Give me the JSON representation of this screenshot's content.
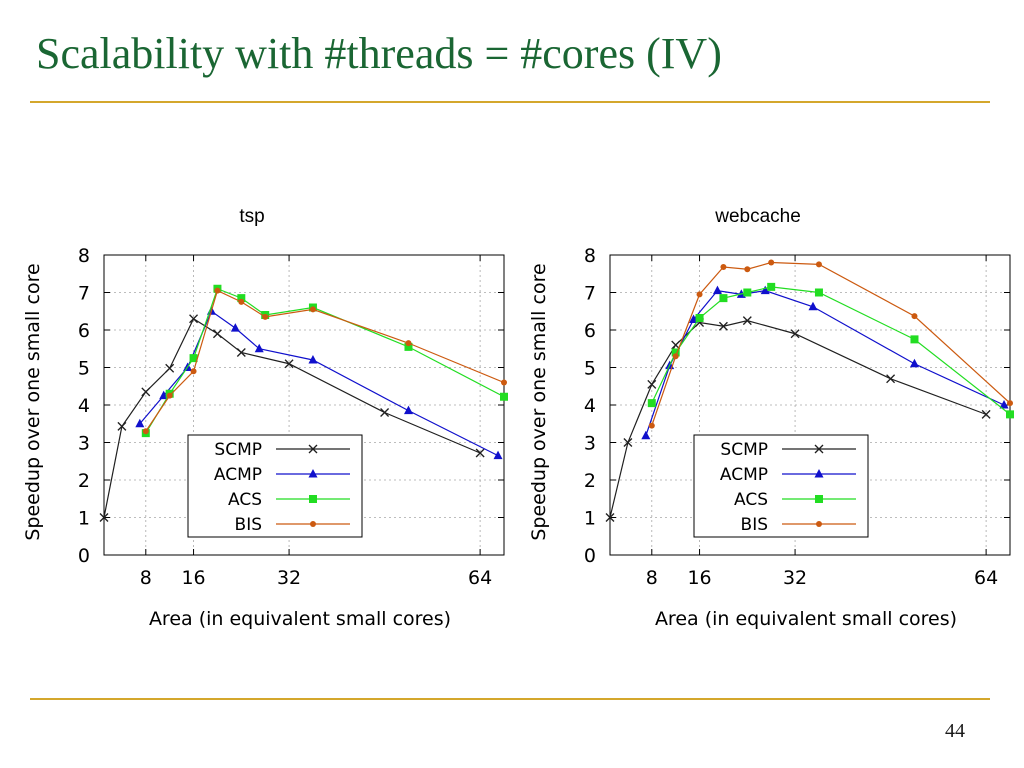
{
  "title": "Scalability with #threads = #cores (IV)",
  "page_number": "44",
  "chart_data": [
    {
      "type": "line",
      "title": "tsp",
      "xlabel": "Area (in equivalent small cores)",
      "ylabel": "Speedup over one small core",
      "xlim": [
        1,
        68
      ],
      "ylim": [
        0,
        8
      ],
      "xticks": [
        8,
        16,
        32,
        64
      ],
      "yticks": [
        0,
        1,
        2,
        3,
        4,
        5,
        6,
        7,
        8
      ],
      "grid": true,
      "legend_position": "lower-center",
      "series": [
        {
          "name": "SCMP",
          "color": "#202020",
          "marker": "x",
          "x": [
            1,
            4,
            8,
            12,
            16,
            20,
            24,
            32,
            48,
            64
          ],
          "y": [
            1.0,
            3.43,
            4.35,
            4.98,
            6.3,
            5.9,
            5.4,
            5.1,
            3.8,
            2.72
          ]
        },
        {
          "name": "ACMP",
          "color": "#1010cc",
          "marker": "triangle",
          "x": [
            7,
            11,
            15,
            19,
            23,
            27,
            36,
            52,
            67
          ],
          "y": [
            3.5,
            4.25,
            5.0,
            6.5,
            6.05,
            5.5,
            5.2,
            3.85,
            2.65
          ]
        },
        {
          "name": "ACS",
          "color": "#22dd22",
          "marker": "square",
          "x": [
            8,
            12,
            16,
            20,
            24,
            28,
            36,
            52,
            68
          ],
          "y": [
            3.25,
            4.3,
            5.25,
            7.1,
            6.85,
            6.4,
            6.6,
            5.55,
            4.22
          ]
        },
        {
          "name": "BIS",
          "color": "#cc5a10",
          "marker": "dot",
          "x": [
            8,
            12,
            16,
            20,
            24,
            28,
            36,
            52,
            68
          ],
          "y": [
            3.3,
            4.25,
            4.9,
            7.05,
            6.75,
            6.35,
            6.55,
            5.65,
            4.6
          ]
        }
      ]
    },
    {
      "type": "line",
      "title": "webcache",
      "xlabel": "Area (in equivalent small cores)",
      "ylabel": "Speedup over one small core",
      "xlim": [
        1,
        68
      ],
      "ylim": [
        0,
        8
      ],
      "xticks": [
        8,
        16,
        32,
        64
      ],
      "yticks": [
        0,
        1,
        2,
        3,
        4,
        5,
        6,
        7,
        8
      ],
      "grid": true,
      "legend_position": "lower-center",
      "series": [
        {
          "name": "SCMP",
          "color": "#202020",
          "marker": "x",
          "x": [
            1,
            4,
            8,
            12,
            16,
            20,
            24,
            32,
            48,
            64
          ],
          "y": [
            1.0,
            3.0,
            4.55,
            5.6,
            6.2,
            6.1,
            6.25,
            5.9,
            4.7,
            3.75
          ]
        },
        {
          "name": "ACMP",
          "color": "#1010cc",
          "marker": "triangle",
          "x": [
            7,
            11,
            15,
            19,
            23,
            27,
            35,
            52,
            67
          ],
          "y": [
            3.18,
            5.05,
            6.28,
            7.05,
            6.95,
            7.05,
            6.62,
            5.1,
            4.0
          ]
        },
        {
          "name": "ACS",
          "color": "#22dd22",
          "marker": "square",
          "x": [
            8,
            12,
            16,
            20,
            24,
            28,
            36,
            52,
            68
          ],
          "y": [
            4.05,
            5.4,
            6.32,
            6.85,
            7.0,
            7.15,
            7.0,
            5.75,
            3.75
          ]
        },
        {
          "name": "BIS",
          "color": "#cc5a10",
          "marker": "dot",
          "x": [
            8,
            12,
            16,
            20,
            24,
            28,
            36,
            52,
            68
          ],
          "y": [
            3.45,
            5.3,
            6.95,
            7.68,
            7.62,
            7.8,
            7.75,
            6.37,
            4.05
          ]
        }
      ]
    }
  ]
}
